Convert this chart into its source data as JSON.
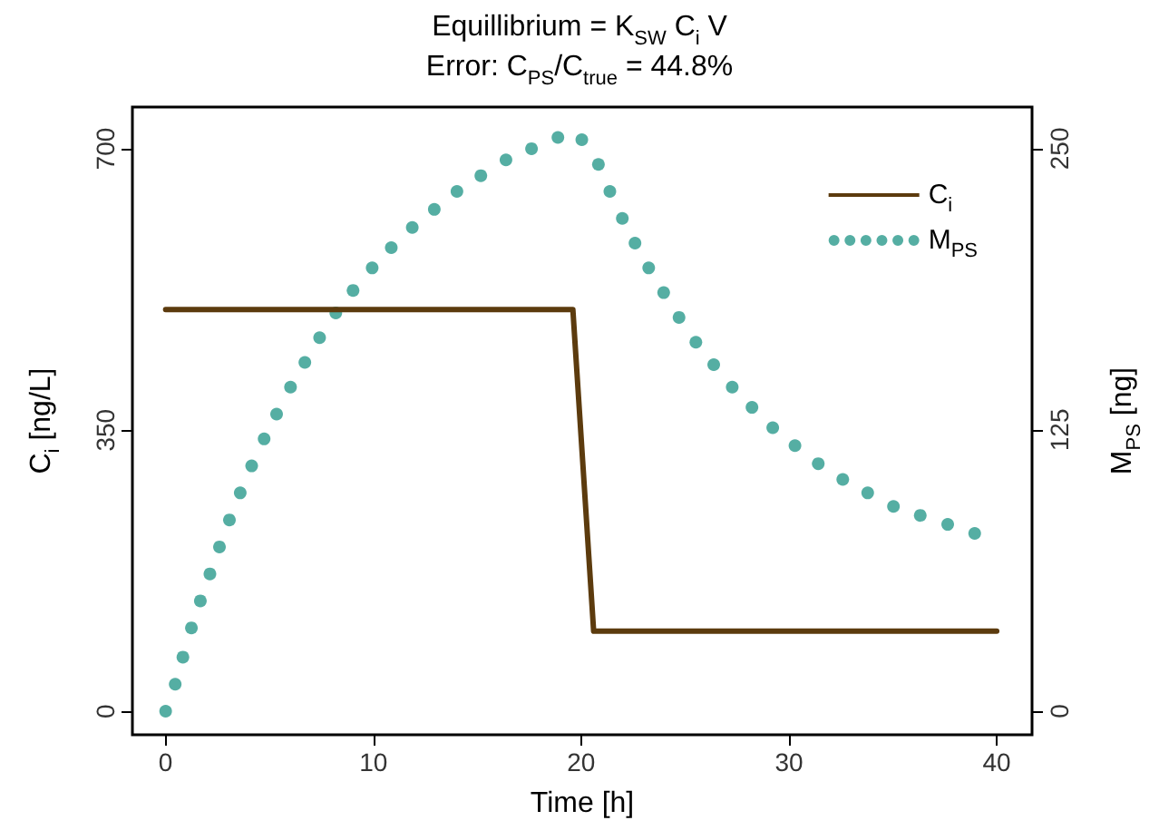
{
  "chart_data": {
    "type": "line",
    "title": "Equillibrium = K$_{SW}$ C$_{i}$ V",
    "subtitle": "Error: C$_{PS}$/C$_{true}$ = 44.8%",
    "xlabel": "Time [h]",
    "ylabel": "C$_{i}$ [ng/L]",
    "y2label": "M$_{PS}$ [ng]",
    "xlim": [
      -1.6,
      41.7
    ],
    "xticks": [
      0,
      10,
      20,
      30,
      40
    ],
    "ylim": [
      -29,
      752
    ],
    "yticks": [
      0,
      350,
      700
    ],
    "y2lim": [
      -10.5,
      268.5
    ],
    "y2ticks": [
      0,
      125,
      250
    ],
    "grid": false,
    "legend": "top right",
    "series": [
      {
        "name": "C$_{i}$",
        "color": "#5c3b0e",
        "line_style": "solid",
        "x": [
          0,
          19.6,
          20.6,
          40
        ],
        "values": [
          500,
          500,
          100,
          100
        ]
      },
      {
        "name": "M$_{PS}$",
        "type": "scatter",
        "axis": "y2",
        "marker": "circle",
        "color": "#2a9a8c",
        "x": [
          0,
          0.46,
          0.83,
          1.24,
          1.67,
          2.13,
          2.59,
          3.07,
          3.59,
          4.14,
          4.74,
          5.34,
          6.01,
          6.7,
          7.41,
          8.19,
          9.02,
          9.94,
          10.86,
          11.87,
          12.93,
          14.02,
          15.17,
          16.38,
          17.61,
          18.88,
          20.03,
          20.83,
          21.38,
          21.98,
          22.59,
          23.25,
          23.97,
          24.71,
          25.52,
          26.38,
          27.27,
          28.22,
          29.22,
          30.29,
          31.41,
          32.59,
          33.79,
          35.03,
          36.32,
          37.64,
          38.94
        ],
        "values": [
          0,
          12,
          24,
          37,
          49,
          61,
          73,
          85,
          97,
          109,
          121,
          132,
          144,
          155,
          166,
          177,
          187,
          197,
          206,
          215,
          223,
          231,
          238,
          245,
          250,
          255,
          254,
          243,
          231,
          219,
          208,
          197,
          186,
          175,
          164,
          154,
          144,
          135,
          126,
          118,
          110,
          103,
          97,
          91,
          87,
          83,
          79
        ]
      }
    ]
  }
}
